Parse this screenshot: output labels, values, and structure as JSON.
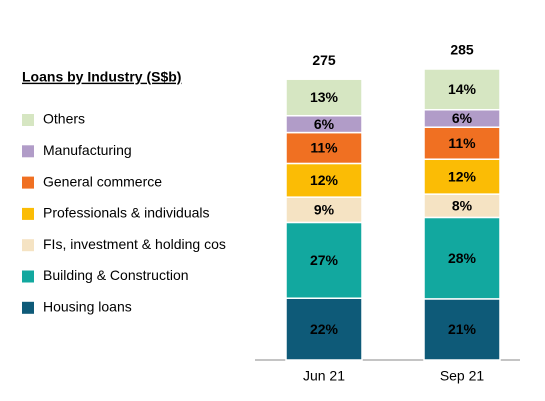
{
  "chart_data": {
    "type": "stacked_bar_100",
    "legend_title": "Loans by Industry (S$b)",
    "categories": [
      "Jun 21",
      "Sep 21"
    ],
    "totals": [
      275,
      285
    ],
    "series": [
      {
        "name": "Housing loans",
        "color": "#0e5a78",
        "values": [
          22,
          21
        ],
        "value_labels": [
          "22%",
          "21%"
        ]
      },
      {
        "name": "Building & Construction",
        "color": "#12a89f",
        "values": [
          27,
          28
        ],
        "value_labels": [
          "27%",
          "28%"
        ]
      },
      {
        "name": "FIs, investment & holding cos",
        "color": "#f5e3c3",
        "values": [
          9,
          8
        ],
        "value_labels": [
          "9%",
          "8%"
        ]
      },
      {
        "name": "Professionals & individuals",
        "color": "#fbbc05",
        "values": [
          12,
          12
        ],
        "value_labels": [
          "12%",
          "12%"
        ]
      },
      {
        "name": "General commerce",
        "color": "#f07022",
        "values": [
          11,
          11
        ],
        "value_labels": [
          "11%",
          "11%"
        ]
      },
      {
        "name": "Manufacturing",
        "color": "#b19cc8",
        "values": [
          6,
          6
        ],
        "value_labels": [
          "6%",
          "6%"
        ]
      },
      {
        "name": "Others",
        "color": "#d6e6c2",
        "values": [
          13,
          14
        ],
        "value_labels": [
          "13%",
          "14%"
        ]
      }
    ],
    "legend": "left"
  }
}
